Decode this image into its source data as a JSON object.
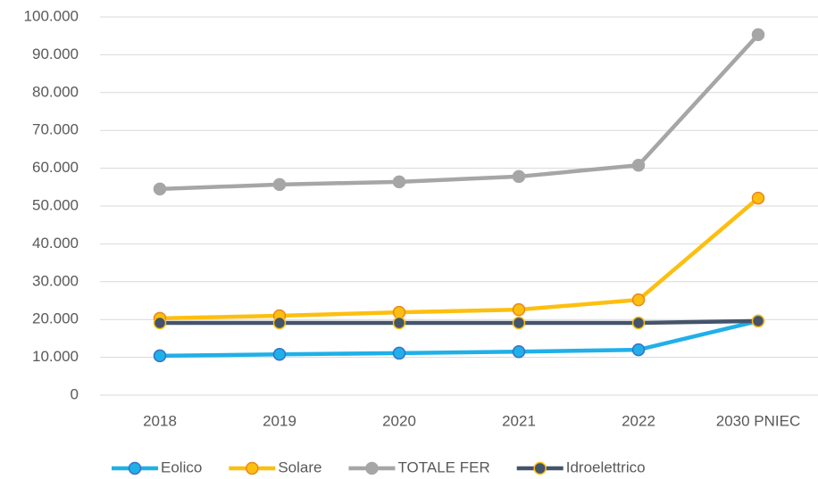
{
  "chart_data": {
    "type": "line",
    "categories": [
      "2018",
      "2019",
      "2020",
      "2021",
      "2022",
      "2030 PNIEC"
    ],
    "series": [
      {
        "name": "Eolico",
        "color": "#1fb0e8",
        "marker_edge": "#3a6fc9",
        "values": [
          10400,
          10800,
          11100,
          11500,
          12000,
          19600
        ]
      },
      {
        "name": "Solare",
        "color": "#fdbf0f",
        "marker_edge": "#e8871e",
        "values": [
          20300,
          21000,
          21900,
          22600,
          25200,
          52100
        ]
      },
      {
        "name": "TOTALE FER",
        "color": "#a6a6a6",
        "marker_edge": "#a6a6a6",
        "values": [
          54500,
          55700,
          56400,
          57800,
          60800,
          95300
        ]
      },
      {
        "name": "Idroelettrico",
        "color": "#44546a",
        "marker_edge": "#fdbf0f",
        "values": [
          19100,
          19100,
          19100,
          19100,
          19100,
          19600
        ]
      }
    ],
    "ylim": [
      0,
      100000
    ],
    "yticks": [
      0,
      {
        "value": 10000,
        "label": "10.000"
      },
      {
        "value": 20000,
        "label": "20.000"
      },
      {
        "value": 30000,
        "label": "30.000"
      },
      {
        "value": 40000,
        "label": "40.000"
      },
      {
        "value": 50000,
        "label": "50.000"
      },
      {
        "value": 60000,
        "label": "60.000"
      },
      {
        "value": 70000,
        "label": "70.000"
      },
      {
        "value": 80000,
        "label": "80.000"
      },
      {
        "value": 90000,
        "label": "90.000"
      },
      {
        "value": 100000,
        "label": "100.000"
      }
    ],
    "grid": true,
    "legend": "bottom"
  }
}
